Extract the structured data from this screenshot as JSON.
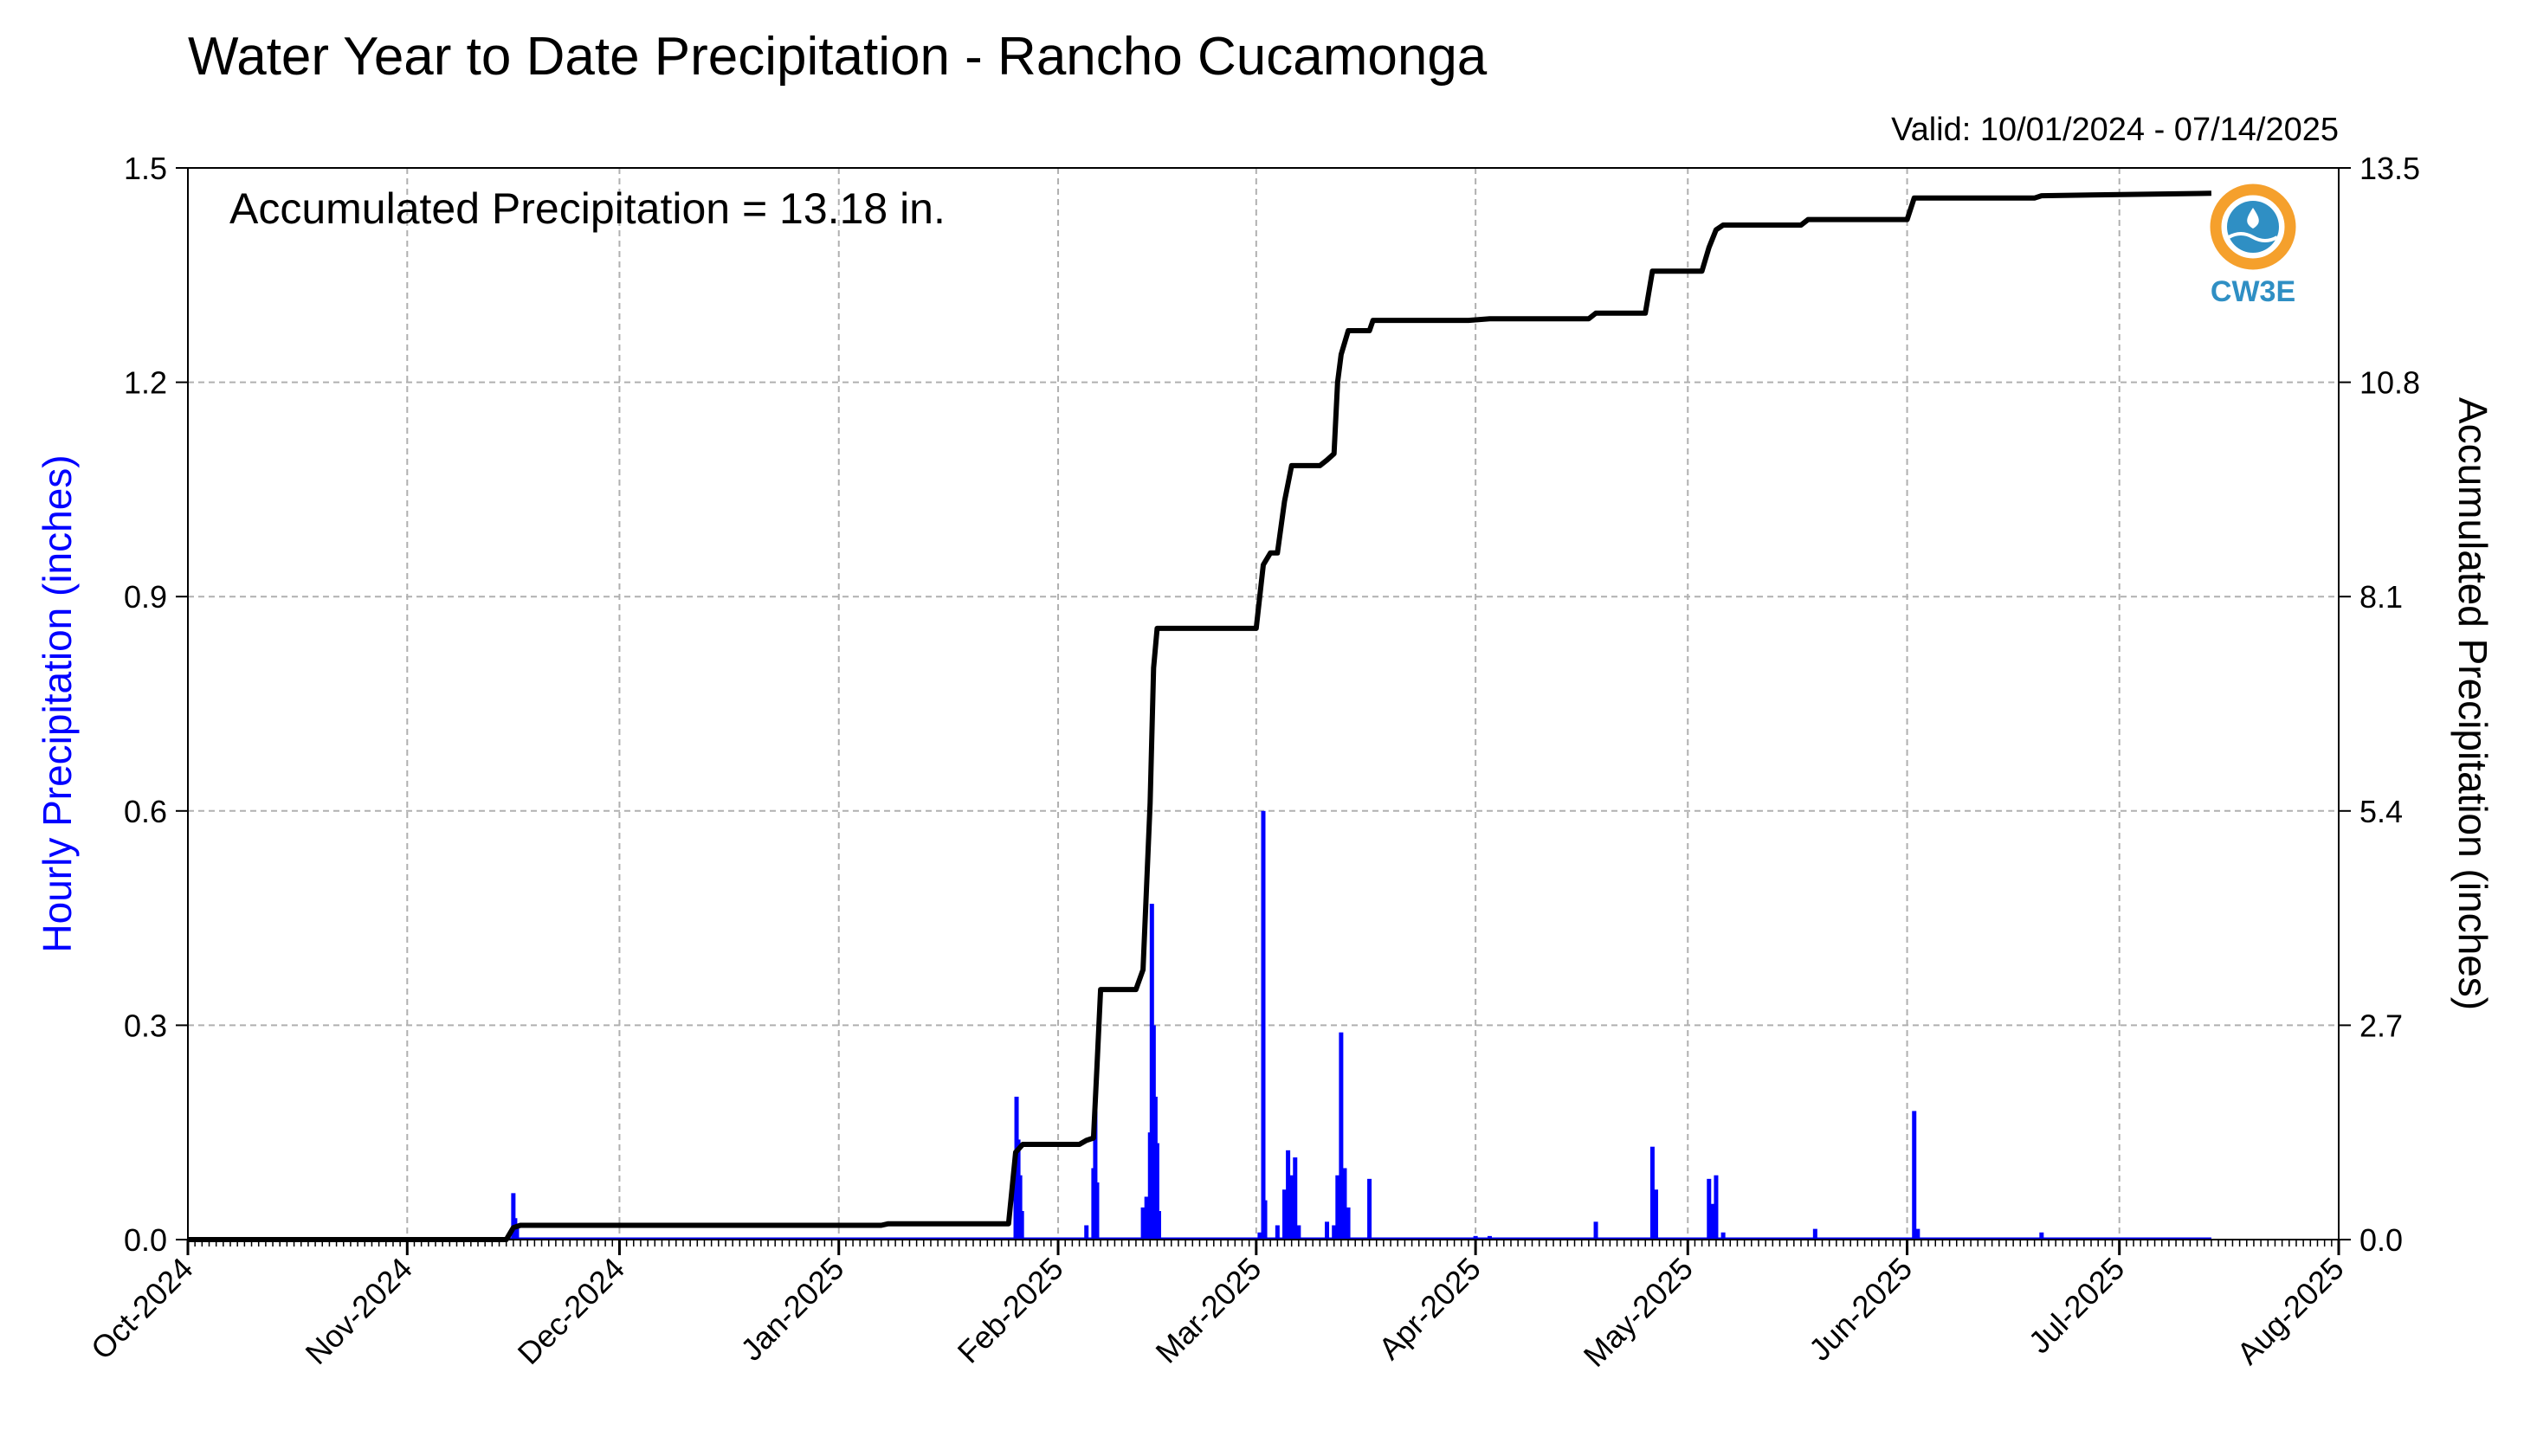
{
  "chart_data": {
    "type": "bar+line",
    "title": "Water Year to Date Precipitation - Rancho Cucamonga",
    "valid_text": "Valid: 10/01/2024 - 07/14/2025",
    "annotation": "Accumulated Precipitation = 13.18 in.",
    "left_ylabel": "Hourly Precipitation (inches)",
    "right_ylabel": "Accumulated Precipitation (inches)",
    "left_ylim": [
      0,
      1.5
    ],
    "right_ylim": [
      0,
      13.5
    ],
    "left_yticks": [
      "0.0",
      "0.3",
      "0.6",
      "0.9",
      "1.2",
      "1.5"
    ],
    "right_yticks": [
      "0.0",
      "2.7",
      "5.4",
      "8.1",
      "10.8",
      "13.5"
    ],
    "xlim": [
      "2024-10-01",
      "2025-08-01"
    ],
    "xticks": [
      {
        "date": "2024-10-01",
        "label": "Oct-2024"
      },
      {
        "date": "2024-11-01",
        "label": "Nov-2024"
      },
      {
        "date": "2024-12-01",
        "label": "Dec-2024"
      },
      {
        "date": "2025-01-01",
        "label": "Jan-2025"
      },
      {
        "date": "2025-02-01",
        "label": "Feb-2025"
      },
      {
        "date": "2025-03-01",
        "label": "Mar-2025"
      },
      {
        "date": "2025-04-01",
        "label": "Apr-2025"
      },
      {
        "date": "2025-05-01",
        "label": "May-2025"
      },
      {
        "date": "2025-06-01",
        "label": "Jun-2025"
      },
      {
        "date": "2025-07-01",
        "label": "Jul-2025"
      },
      {
        "date": "2025-08-01",
        "label": "Aug-2025"
      }
    ],
    "grid": true,
    "colors": {
      "hourly": "#0000ff",
      "accumulated": "#000000",
      "grid": "#b0b0b0"
    },
    "hourly_series": {
      "name": "Hourly Precipitation",
      "points": [
        [
          "2024-11-16T00",
          0.065
        ],
        [
          "2024-11-16T06",
          0.03
        ],
        [
          "2024-11-16T12",
          0.02
        ],
        [
          "2025-01-26T00",
          0.08
        ],
        [
          "2025-01-26T03",
          0.2
        ],
        [
          "2025-01-26T09",
          0.14
        ],
        [
          "2025-01-26T15",
          0.09
        ],
        [
          "2025-01-26T21",
          0.04
        ],
        [
          "2025-02-05T00",
          0.02
        ],
        [
          "2025-02-06T00",
          0.1
        ],
        [
          "2025-02-06T06",
          0.18
        ],
        [
          "2025-02-06T12",
          0.08
        ],
        [
          "2025-02-13T00",
          0.045
        ],
        [
          "2025-02-13T12",
          0.06
        ],
        [
          "2025-02-14T00",
          0.15
        ],
        [
          "2025-02-14T06",
          0.47
        ],
        [
          "2025-02-14T12",
          0.3
        ],
        [
          "2025-02-14T18",
          0.2
        ],
        [
          "2025-02-15T00",
          0.135
        ],
        [
          "2025-02-15T06",
          0.04
        ],
        [
          "2025-03-01T12",
          0.01
        ],
        [
          "2025-03-02T00",
          0.6
        ],
        [
          "2025-03-02T06",
          0.055
        ],
        [
          "2025-03-04T00",
          0.02
        ],
        [
          "2025-03-05T00",
          0.07
        ],
        [
          "2025-03-05T12",
          0.125
        ],
        [
          "2025-03-06T00",
          0.09
        ],
        [
          "2025-03-06T12",
          0.115
        ],
        [
          "2025-03-07T00",
          0.02
        ],
        [
          "2025-03-11T00",
          0.025
        ],
        [
          "2025-03-12T00",
          0.02
        ],
        [
          "2025-03-12T12",
          0.09
        ],
        [
          "2025-03-13T00",
          0.29
        ],
        [
          "2025-03-13T12",
          0.1
        ],
        [
          "2025-03-14T00",
          0.045
        ],
        [
          "2025-03-17T00",
          0.085
        ],
        [
          "2025-04-01T00",
          0.005
        ],
        [
          "2025-04-03T00",
          0.005
        ],
        [
          "2025-04-18T00",
          0.025
        ],
        [
          "2025-04-26T00",
          0.13
        ],
        [
          "2025-04-26T12",
          0.07
        ],
        [
          "2025-05-04T00",
          0.085
        ],
        [
          "2025-05-04T12",
          0.05
        ],
        [
          "2025-05-05T00",
          0.09
        ],
        [
          "2025-05-06T00",
          0.01
        ],
        [
          "2025-05-19T00",
          0.015
        ],
        [
          "2025-06-02T00",
          0.18
        ],
        [
          "2025-06-02T12",
          0.015
        ],
        [
          "2025-06-20T00",
          0.01
        ]
      ]
    },
    "accumulated_series": {
      "name": "Accumulated Precipitation",
      "points": [
        [
          "2024-10-01",
          0.0
        ],
        [
          "2024-11-15",
          0.0
        ],
        [
          "2024-11-16",
          0.15
        ],
        [
          "2024-11-17",
          0.18
        ],
        [
          "2025-01-07",
          0.18
        ],
        [
          "2025-01-08",
          0.2
        ],
        [
          "2025-01-25",
          0.2
        ],
        [
          "2025-01-26",
          1.1
        ],
        [
          "2025-01-27",
          1.2
        ],
        [
          "2025-02-04",
          1.2
        ],
        [
          "2025-02-05",
          1.25
        ],
        [
          "2025-02-06",
          1.28
        ],
        [
          "2025-02-06T12",
          2.2
        ],
        [
          "2025-02-07",
          3.15
        ],
        [
          "2025-02-12",
          3.15
        ],
        [
          "2025-02-13",
          3.4
        ],
        [
          "2025-02-14",
          5.5
        ],
        [
          "2025-02-14T12",
          7.2
        ],
        [
          "2025-02-15",
          7.7
        ],
        [
          "2025-03-01",
          7.7
        ],
        [
          "2025-03-02",
          8.5
        ],
        [
          "2025-03-03",
          8.65
        ],
        [
          "2025-03-04",
          8.65
        ],
        [
          "2025-03-05",
          9.3
        ],
        [
          "2025-03-06",
          9.75
        ],
        [
          "2025-03-10",
          9.75
        ],
        [
          "2025-03-11",
          9.82
        ],
        [
          "2025-03-12",
          9.9
        ],
        [
          "2025-03-12T12",
          10.8
        ],
        [
          "2025-03-13",
          11.15
        ],
        [
          "2025-03-14",
          11.45
        ],
        [
          "2025-03-17",
          11.45
        ],
        [
          "2025-03-17T12",
          11.58
        ],
        [
          "2025-03-31",
          11.58
        ],
        [
          "2025-04-03",
          11.6
        ],
        [
          "2025-04-17",
          11.6
        ],
        [
          "2025-04-18",
          11.67
        ],
        [
          "2025-04-25",
          11.67
        ],
        [
          "2025-04-26",
          12.2
        ],
        [
          "2025-05-03",
          12.2
        ],
        [
          "2025-05-04",
          12.5
        ],
        [
          "2025-05-05",
          12.72
        ],
        [
          "2025-05-06",
          12.78
        ],
        [
          "2025-05-17",
          12.78
        ],
        [
          "2025-05-18",
          12.85
        ],
        [
          "2025-06-01",
          12.85
        ],
        [
          "2025-06-02",
          13.12
        ],
        [
          "2025-06-19",
          13.12
        ],
        [
          "2025-06-20",
          13.15
        ],
        [
          "2025-07-14",
          13.18
        ]
      ]
    }
  },
  "logo": {
    "text": "CW3E",
    "colors": {
      "orange": "#f5a02c",
      "blue": "#2f8fc4"
    }
  }
}
